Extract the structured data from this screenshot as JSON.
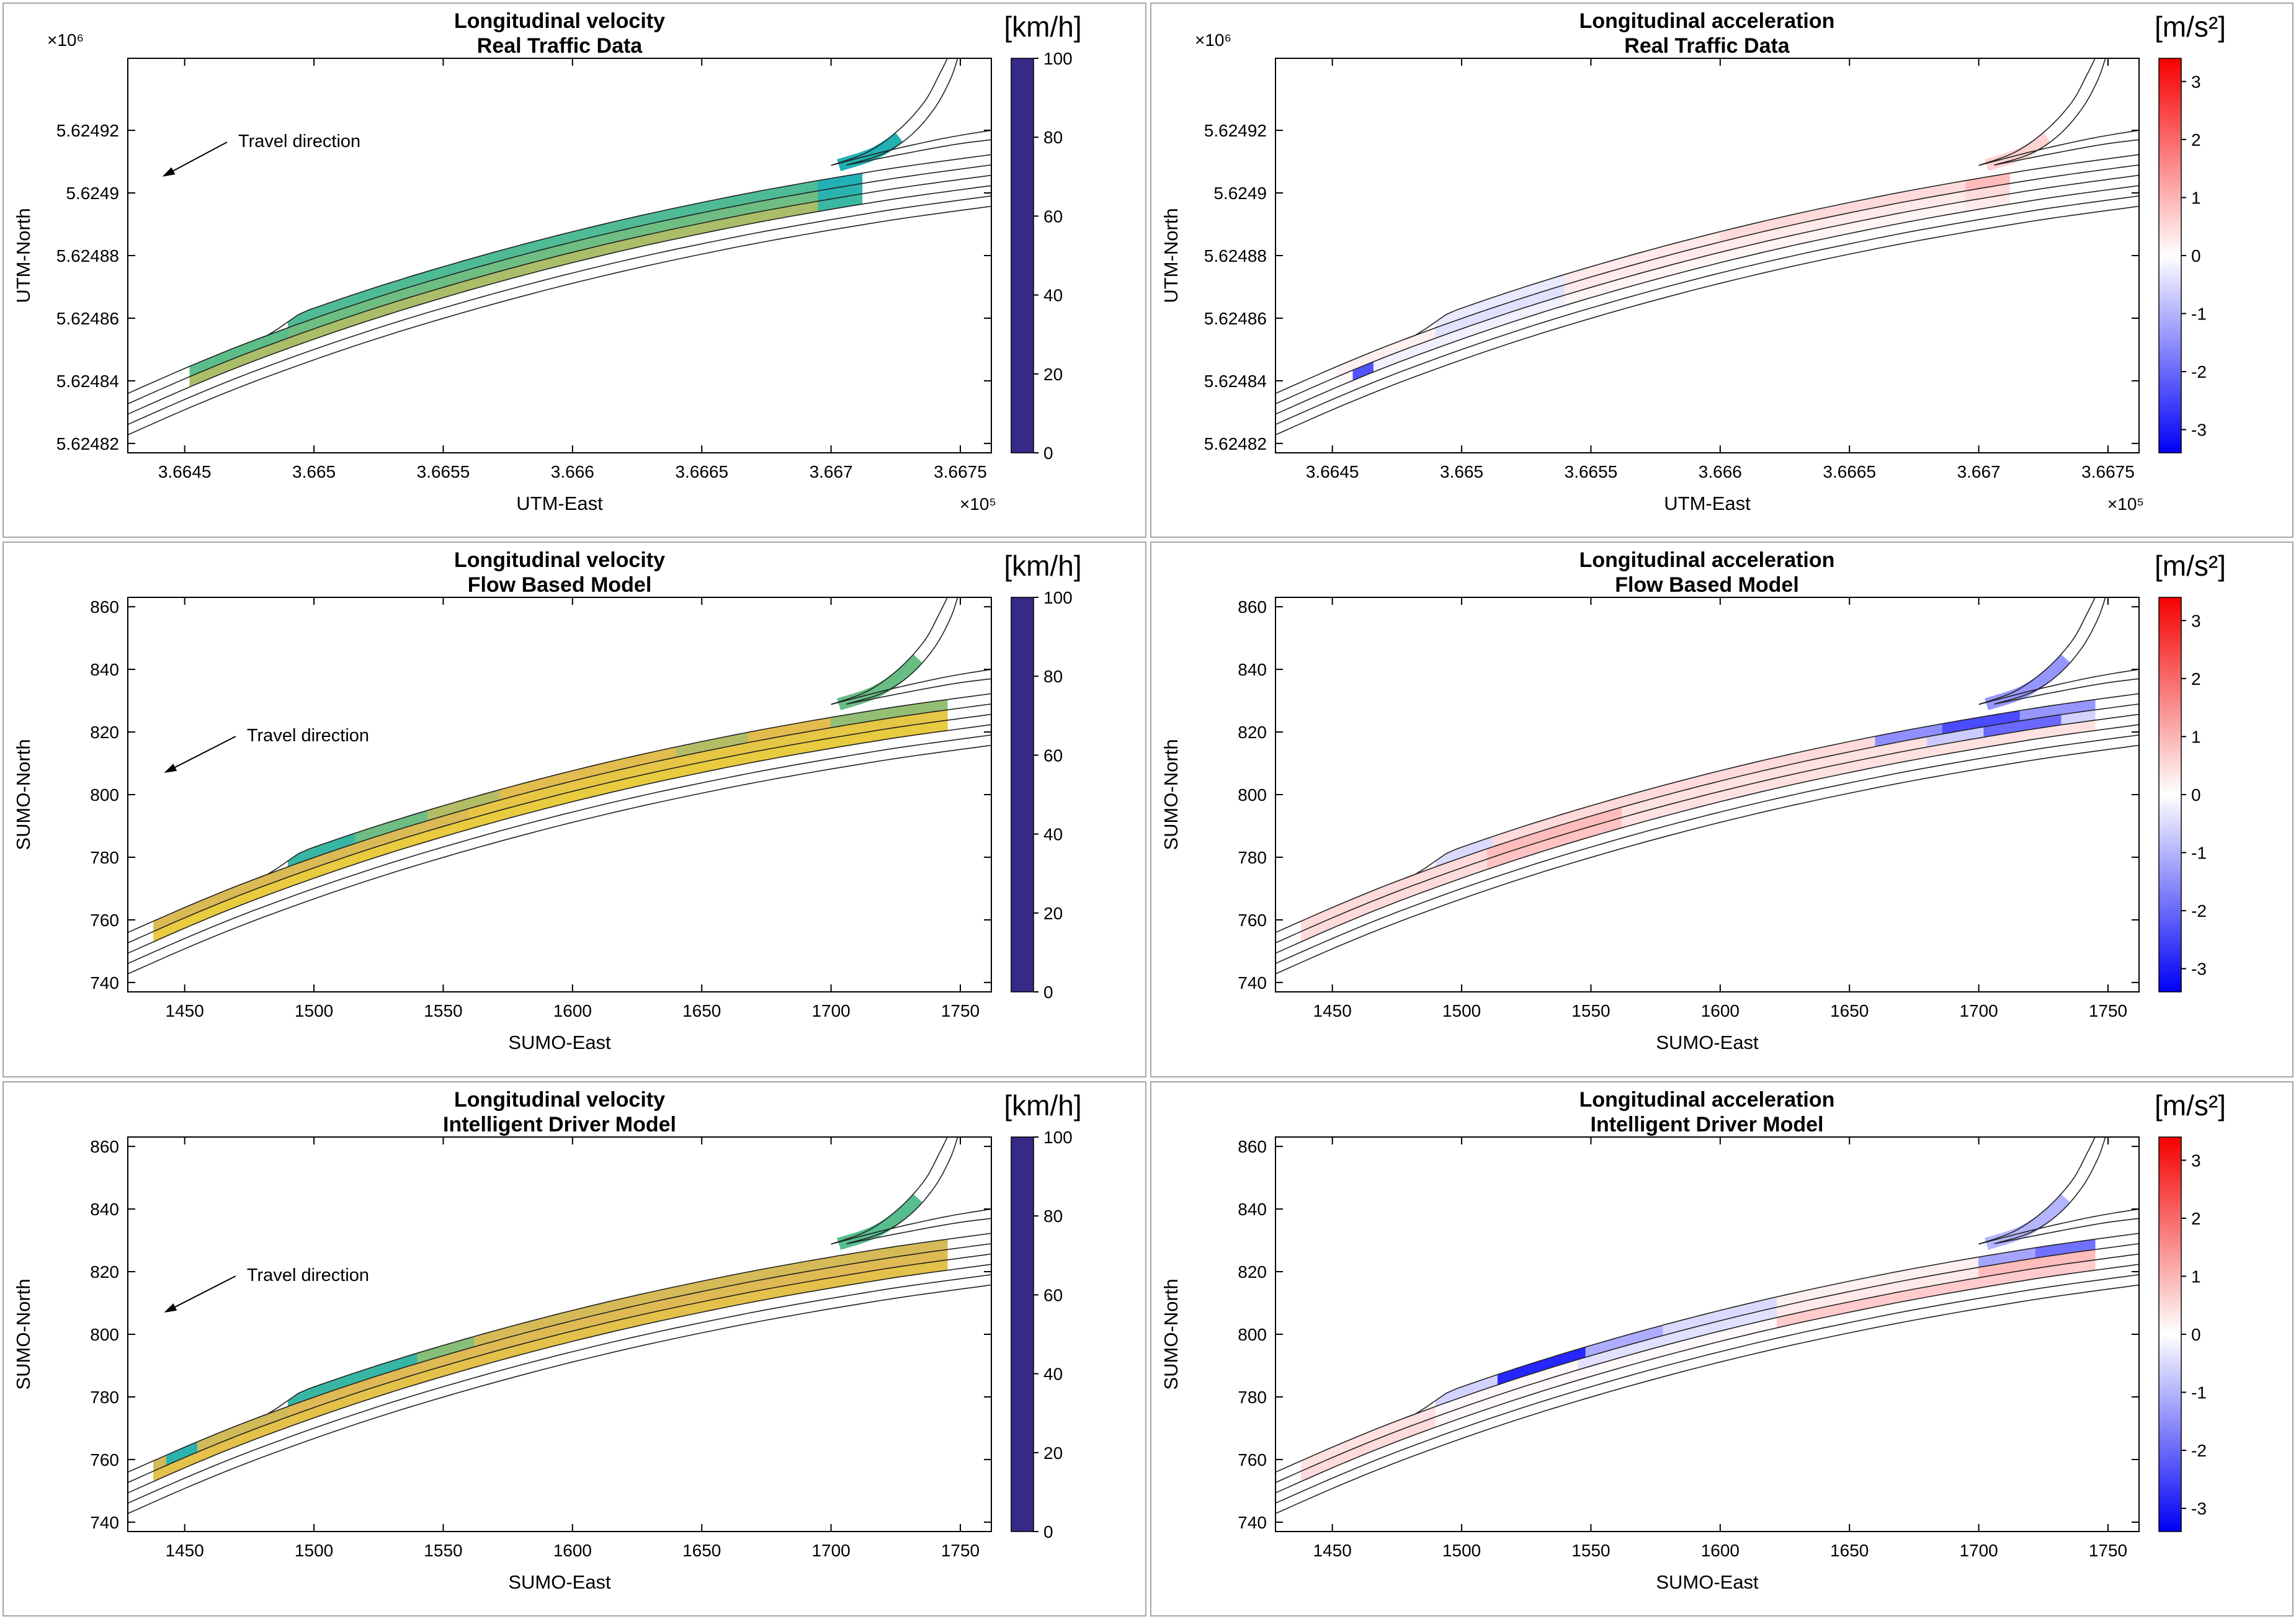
{
  "meta": {
    "travel_direction_label": "Travel direction",
    "figure_kind": "MATLAB-style 3x2 subplot figure comparing longitudinal velocity and acceleration heatmaps painted on a curved multi-lane highway with an off-ramp"
  },
  "colormaps": {
    "parula_stops": [
      [
        53,
        42,
        135
      ],
      [
        15,
        92,
        221
      ],
      [
        18,
        125,
        216
      ],
      [
        7,
        156,
        207
      ],
      [
        33,
        177,
        180
      ],
      [
        89,
        189,
        140
      ],
      [
        165,
        190,
        107
      ],
      [
        225,
        185,
        82
      ],
      [
        249,
        251,
        14
      ]
    ],
    "diverging": {
      "neg": "#0000f5",
      "zero": "#ffffff",
      "pos": "#f50000"
    }
  },
  "road_geometry": {
    "axis_range": {
      "x": [
        1428,
        1762
      ],
      "y": [
        737,
        863
      ]
    },
    "centerline": [
      [
        1428,
        751
      ],
      [
        1450,
        759
      ],
      [
        1470,
        765.8
      ],
      [
        1490,
        772
      ],
      [
        1510,
        777.8
      ],
      [
        1530,
        783.2
      ],
      [
        1550,
        788.2
      ],
      [
        1570,
        792.9
      ],
      [
        1590,
        797.3
      ],
      [
        1610,
        801.4
      ],
      [
        1630,
        805.2
      ],
      [
        1650,
        808.7
      ],
      [
        1670,
        812
      ],
      [
        1690,
        815
      ],
      [
        1710,
        817.8
      ],
      [
        1730,
        820.4
      ],
      [
        1762,
        824
      ]
    ],
    "lane_line_offsets": [
      -8.25,
      -4.95,
      -1.65,
      1.65,
      4.95
    ],
    "top_edge": {
      "before": 4.95,
      "after": 8.25,
      "x_start": 1483,
      "x_end": 1495
    },
    "ramp_line_1": [
      [
        1700,
        828.8
      ],
      [
        1714,
        833
      ],
      [
        1726,
        840
      ],
      [
        1736,
        849
      ],
      [
        1742,
        858
      ],
      [
        1745,
        863
      ]
    ],
    "ramp_line_2": [
      [
        1706,
        828.9
      ],
      [
        1720,
        832.5
      ],
      [
        1731,
        838.5
      ],
      [
        1740,
        847
      ],
      [
        1746,
        856
      ],
      [
        1749,
        863
      ]
    ],
    "fork_line_1": [
      [
        1700,
        828.8
      ],
      [
        1722,
        833.5
      ],
      [
        1744,
        837.5
      ],
      [
        1762,
        840
      ]
    ],
    "fork_line_2": [
      [
        1706,
        828.9
      ],
      [
        1728,
        832.5
      ],
      [
        1748,
        835.5
      ],
      [
        1762,
        837
      ]
    ]
  },
  "chart_data": [
    {
      "type": "road-heatmap",
      "title1": "Longitudinal velocity",
      "title2": "Real Traffic Data",
      "unit": "[km/h]",
      "cmap": "parula",
      "xlabel": "UTM-East",
      "ylabel": "UTM-North",
      "x_exp": "×10⁵",
      "y_exp": "×10⁶",
      "x_ticks": [
        {
          "p": 1450,
          "t": "3.6645"
        },
        {
          "p": 1500,
          "t": "3.665"
        },
        {
          "p": 1550,
          "t": "3.6655"
        },
        {
          "p": 1600,
          "t": "3.666"
        },
        {
          "p": 1650,
          "t": "3.6665"
        },
        {
          "p": 1700,
          "t": "3.667"
        },
        {
          "p": 1750,
          "t": "3.6675"
        }
      ],
      "y_ticks": [
        {
          "p": 740,
          "t": "5.62482"
        },
        {
          "p": 760,
          "t": "5.62484"
        },
        {
          "p": 780,
          "t": "5.62486"
        },
        {
          "p": 800,
          "t": "5.62488"
        },
        {
          "p": 820,
          "t": "5.6249"
        },
        {
          "p": 840,
          "t": "5.62492"
        }
      ],
      "colorbar": {
        "min": 0,
        "max": 100,
        "tick_values": [
          0,
          20,
          40,
          60,
          80,
          100
        ],
        "tick_labels": [
          "0",
          "20",
          "40",
          "60",
          "80",
          "100"
        ]
      },
      "annotation": {
        "label": "Travel direction",
        "text_u": 0.125,
        "text_v": 0.775,
        "tip_u": 0.04,
        "tip_v": 0.7
      },
      "segments": {
        "lane0": [
          [
            1490,
            1695,
            60
          ],
          [
            1695,
            1712,
            50
          ]
        ],
        "lane1": [
          [
            1452,
            1490,
            63
          ],
          [
            1490,
            1695,
            66
          ],
          [
            1695,
            1712,
            52
          ]
        ],
        "lane2": [
          [
            1452,
            1695,
            76
          ],
          [
            1695,
            1712,
            56
          ]
        ],
        "ramp": [
          [
            0,
            0.35,
            50
          ]
        ]
      }
    },
    {
      "type": "road-heatmap",
      "title1": "Longitudinal acceleration",
      "title2": "Real Traffic Data",
      "unit": "[m/s²]",
      "cmap": "diverging",
      "xlabel": "UTM-East",
      "ylabel": "UTM-North",
      "x_exp": "×10⁵",
      "y_exp": "×10⁶",
      "x_ticks": [
        {
          "p": 1450,
          "t": "3.6645"
        },
        {
          "p": 1500,
          "t": "3.665"
        },
        {
          "p": 1550,
          "t": "3.6655"
        },
        {
          "p": 1600,
          "t": "3.666"
        },
        {
          "p": 1650,
          "t": "3.6665"
        },
        {
          "p": 1700,
          "t": "3.667"
        },
        {
          "p": 1750,
          "t": "3.6675"
        }
      ],
      "y_ticks": [
        {
          "p": 740,
          "t": "5.62482"
        },
        {
          "p": 760,
          "t": "5.62484"
        },
        {
          "p": 780,
          "t": "5.62486"
        },
        {
          "p": 800,
          "t": "5.62488"
        },
        {
          "p": 820,
          "t": "5.6249"
        },
        {
          "p": 840,
          "t": "5.62492"
        }
      ],
      "colorbar": {
        "min": -3.4,
        "max": 3.4,
        "tick_values": [
          -3,
          -2,
          -1,
          0,
          1,
          2,
          3
        ],
        "tick_labels": [
          "-3",
          "-2",
          "-1",
          "0",
          "1",
          "2",
          "3"
        ]
      },
      "annotation": null,
      "segments": {
        "lane0": [
          [
            1490,
            1540,
            -0.3
          ],
          [
            1540,
            1600,
            0.3
          ],
          [
            1600,
            1695,
            0.5
          ],
          [
            1695,
            1712,
            0.9
          ]
        ],
        "lane1": [
          [
            1452,
            1490,
            0.2
          ],
          [
            1490,
            1540,
            -0.4
          ],
          [
            1540,
            1695,
            0.3
          ],
          [
            1695,
            1712,
            0.5
          ]
        ],
        "lane2": [
          [
            1452,
            1458,
            0.1
          ],
          [
            1458,
            1466,
            -2.3
          ],
          [
            1466,
            1540,
            -0.2
          ],
          [
            1540,
            1695,
            0.15
          ],
          [
            1695,
            1712,
            0.3
          ]
        ],
        "ramp": [
          [
            0,
            0.35,
            0.6
          ]
        ]
      }
    },
    {
      "type": "road-heatmap",
      "title1": "Longitudinal velocity",
      "title2": "Flow Based Model",
      "unit": "[km/h]",
      "cmap": "parula",
      "xlabel": "SUMO-East",
      "ylabel": "SUMO-North",
      "x_exp": null,
      "y_exp": null,
      "x_ticks": [
        {
          "p": 1450,
          "t": "1450"
        },
        {
          "p": 1500,
          "t": "1500"
        },
        {
          "p": 1550,
          "t": "1550"
        },
        {
          "p": 1600,
          "t": "1600"
        },
        {
          "p": 1650,
          "t": "1650"
        },
        {
          "p": 1700,
          "t": "1700"
        },
        {
          "p": 1750,
          "t": "1750"
        }
      ],
      "y_ticks": [
        {
          "p": 740,
          "t": "740"
        },
        {
          "p": 760,
          "t": "760"
        },
        {
          "p": 780,
          "t": "780"
        },
        {
          "p": 800,
          "t": "800"
        },
        {
          "p": 820,
          "t": "820"
        },
        {
          "p": 840,
          "t": "840"
        },
        {
          "p": 860,
          "t": "860"
        }
      ],
      "colorbar": {
        "min": 0,
        "max": 100,
        "tick_values": [
          0,
          20,
          40,
          60,
          80,
          100
        ],
        "tick_labels": [
          "0",
          "20",
          "40",
          "60",
          "80",
          "100"
        ]
      },
      "annotation": {
        "label": "Travel direction",
        "text_u": 0.135,
        "text_v": 0.635,
        "tip_u": 0.042,
        "tip_v": 0.555
      },
      "segments": {
        "lane0": [
          [
            1490,
            1516,
            55
          ],
          [
            1516,
            1544,
            66
          ],
          [
            1544,
            1572,
            78
          ],
          [
            1572,
            1640,
            88
          ],
          [
            1640,
            1668,
            78
          ],
          [
            1668,
            1700,
            88
          ],
          [
            1700,
            1745,
            72
          ]
        ],
        "lane1": [
          [
            1438,
            1560,
            86
          ],
          [
            1560,
            1745,
            90
          ]
        ],
        "lane2": [
          [
            1438,
            1745,
            91
          ]
        ],
        "ramp": [
          [
            0,
            0.5,
            65
          ]
        ]
      }
    },
    {
      "type": "road-heatmap",
      "title1": "Longitudinal acceleration",
      "title2": "Flow Based Model",
      "unit": "[m/s²]",
      "cmap": "diverging",
      "xlabel": "SUMO-East",
      "ylabel": "SUMO-North",
      "x_exp": null,
      "y_exp": null,
      "x_ticks": [
        {
          "p": 1450,
          "t": "1450"
        },
        {
          "p": 1500,
          "t": "1500"
        },
        {
          "p": 1550,
          "t": "1550"
        },
        {
          "p": 1600,
          "t": "1600"
        },
        {
          "p": 1650,
          "t": "1650"
        },
        {
          "p": 1700,
          "t": "1700"
        },
        {
          "p": 1750,
          "t": "1750"
        }
      ],
      "y_ticks": [
        {
          "p": 740,
          "t": "740"
        },
        {
          "p": 760,
          "t": "760"
        },
        {
          "p": 780,
          "t": "780"
        },
        {
          "p": 800,
          "t": "800"
        },
        {
          "p": 820,
          "t": "820"
        },
        {
          "p": 840,
          "t": "840"
        },
        {
          "p": 860,
          "t": "860"
        }
      ],
      "colorbar": {
        "min": -3.4,
        "max": 3.4,
        "tick_values": [
          -3,
          -2,
          -1,
          0,
          1,
          2,
          3
        ],
        "tick_labels": [
          "-3",
          "-2",
          "-1",
          "0",
          "1",
          "2",
          "3"
        ]
      },
      "annotation": null,
      "segments": {
        "lane0": [
          [
            1490,
            1512,
            -0.5
          ],
          [
            1512,
            1660,
            0.5
          ],
          [
            1660,
            1686,
            -1.5
          ],
          [
            1686,
            1716,
            -2.4
          ],
          [
            1716,
            1745,
            -1.4
          ]
        ],
        "lane1": [
          [
            1438,
            1510,
            0.5
          ],
          [
            1510,
            1562,
            0.9
          ],
          [
            1562,
            1680,
            0.4
          ],
          [
            1680,
            1702,
            -0.7
          ],
          [
            1702,
            1732,
            -2.0
          ],
          [
            1732,
            1745,
            -0.6
          ]
        ],
        "lane2": [
          [
            1438,
            1510,
            0.5
          ],
          [
            1510,
            1562,
            0.8
          ],
          [
            1562,
            1745,
            0.4
          ]
        ],
        "ramp": [
          [
            0,
            0.5,
            -1.4
          ]
        ]
      }
    },
    {
      "type": "road-heatmap",
      "title1": "Longitudinal velocity",
      "title2": "Intelligent Driver Model",
      "unit": "[km/h]",
      "cmap": "parula",
      "xlabel": "SUMO-East",
      "ylabel": "SUMO-North",
      "x_exp": null,
      "y_exp": null,
      "x_ticks": [
        {
          "p": 1450,
          "t": "1450"
        },
        {
          "p": 1500,
          "t": "1500"
        },
        {
          "p": 1550,
          "t": "1550"
        },
        {
          "p": 1600,
          "t": "1600"
        },
        {
          "p": 1650,
          "t": "1650"
        },
        {
          "p": 1700,
          "t": "1700"
        },
        {
          "p": 1750,
          "t": "1750"
        }
      ],
      "y_ticks": [
        {
          "p": 740,
          "t": "740"
        },
        {
          "p": 760,
          "t": "760"
        },
        {
          "p": 780,
          "t": "780"
        },
        {
          "p": 800,
          "t": "800"
        },
        {
          "p": 820,
          "t": "820"
        },
        {
          "p": 840,
          "t": "840"
        },
        {
          "p": 860,
          "t": "860"
        }
      ],
      "colorbar": {
        "min": 0,
        "max": 100,
        "tick_values": [
          0,
          20,
          40,
          60,
          80,
          100
        ],
        "tick_labels": [
          "0",
          "20",
          "40",
          "60",
          "80",
          "100"
        ]
      },
      "annotation": {
        "label": "Travel direction",
        "text_u": 0.135,
        "text_v": 0.635,
        "tip_u": 0.042,
        "tip_v": 0.555
      },
      "segments": {
        "lane0": [
          [
            1490,
            1540,
            55
          ],
          [
            1540,
            1562,
            70
          ],
          [
            1562,
            1745,
            85
          ]
        ],
        "lane1": [
          [
            1438,
            1443,
            84
          ],
          [
            1443,
            1455,
            52
          ],
          [
            1455,
            1490,
            84
          ],
          [
            1490,
            1745,
            87
          ]
        ],
        "lane2": [
          [
            1438,
            1745,
            89
          ]
        ],
        "ramp": [
          [
            0,
            0.5,
            62
          ]
        ]
      }
    },
    {
      "type": "road-heatmap",
      "title1": "Longitudinal acceleration",
      "title2": "Intelligent Driver Model",
      "unit": "[m/s²]",
      "cmap": "diverging",
      "xlabel": "SUMO-East",
      "ylabel": "SUMO-North",
      "x_exp": null,
      "y_exp": null,
      "x_ticks": [
        {
          "p": 1450,
          "t": "1450"
        },
        {
          "p": 1500,
          "t": "1500"
        },
        {
          "p": 1550,
          "t": "1550"
        },
        {
          "p": 1600,
          "t": "1600"
        },
        {
          "p": 1650,
          "t": "1650"
        },
        {
          "p": 1700,
          "t": "1700"
        },
        {
          "p": 1750,
          "t": "1750"
        }
      ],
      "y_ticks": [
        {
          "p": 740,
          "t": "740"
        },
        {
          "p": 760,
          "t": "760"
        },
        {
          "p": 780,
          "t": "780"
        },
        {
          "p": 800,
          "t": "800"
        },
        {
          "p": 820,
          "t": "820"
        },
        {
          "p": 840,
          "t": "840"
        },
        {
          "p": 860,
          "t": "860"
        }
      ],
      "colorbar": {
        "min": -3.4,
        "max": 3.4,
        "tick_values": [
          -3,
          -2,
          -1,
          0,
          1,
          2,
          3
        ],
        "tick_labels": [
          "-3",
          "-2",
          "-1",
          "0",
          "1",
          "2",
          "3"
        ]
      },
      "annotation": null,
      "segments": {
        "lane0": [
          [
            1490,
            1514,
            -0.6
          ],
          [
            1514,
            1548,
            -2.9
          ],
          [
            1548,
            1578,
            -1.1
          ],
          [
            1578,
            1622,
            -0.5
          ],
          [
            1622,
            1700,
            0.2
          ],
          [
            1700,
            1722,
            -1.2
          ],
          [
            1722,
            1745,
            -1.9
          ]
        ],
        "lane1": [
          [
            1438,
            1490,
            0.4
          ],
          [
            1490,
            1545,
            0.1
          ],
          [
            1545,
            1622,
            -0.4
          ],
          [
            1622,
            1700,
            0.3
          ],
          [
            1700,
            1745,
            0.9
          ]
        ],
        "lane2": [
          [
            1438,
            1490,
            0.5
          ],
          [
            1490,
            1622,
            0.1
          ],
          [
            1622,
            1745,
            0.7
          ]
        ],
        "ramp": [
          [
            0,
            0.5,
            -1.0
          ]
        ]
      }
    }
  ]
}
